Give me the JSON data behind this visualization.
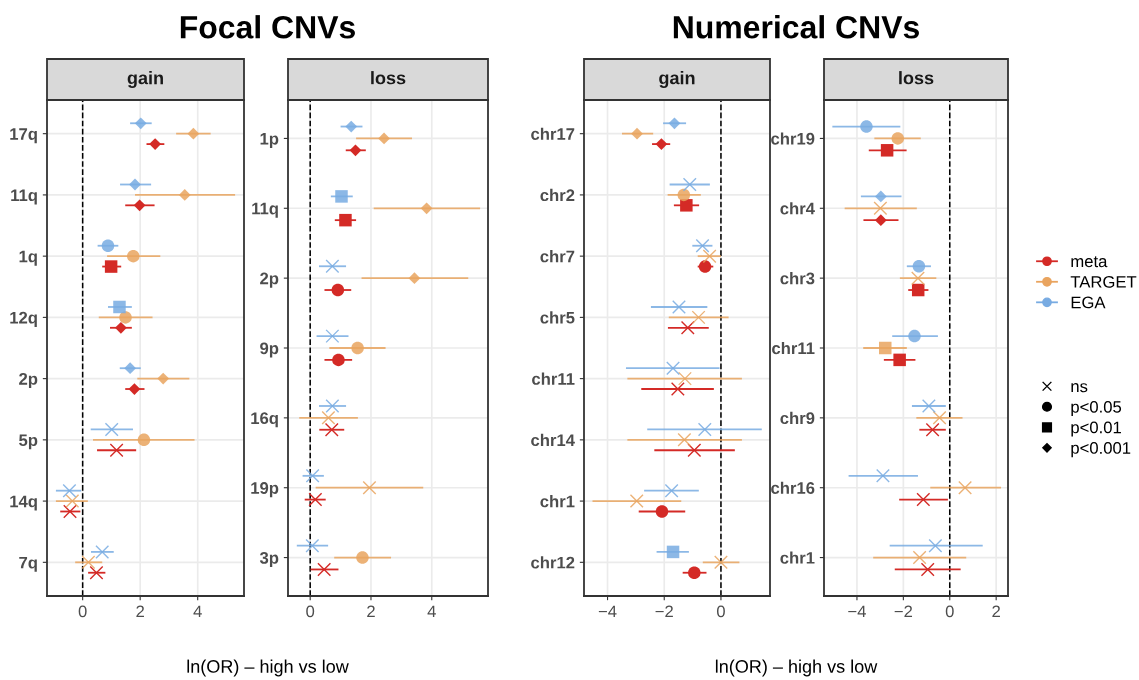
{
  "chart_data": [
    {
      "type": "scatter",
      "orientation": "horizontal",
      "title": "Focal CNVs",
      "subtitle": "gain",
      "xlabel": "ln(OR) – high vs low",
      "categories": [
        "17q",
        "11q",
        "1q",
        "12q",
        "2p",
        "5p",
        "14q",
        "7q"
      ],
      "xlim": [
        -1.24,
        5.61
      ],
      "xticks": [
        0,
        2,
        4
      ],
      "grid": true,
      "legend": "right",
      "annotations": [
        "ns",
        "p<0.05",
        "p<0.01",
        "p<0.001"
      ],
      "marker": [
        "cross",
        "circle",
        "square",
        "diamond"
      ],
      "ref_lines": [
        {
          "axis": "x",
          "value": 0,
          "color": "#000000",
          "line_style": "dashed"
        }
      ],
      "series": [
        {
          "name": "meta",
          "color": "#d42a26",
          "values": [
            2.52,
            1.98,
            0.99,
            1.33,
            1.8,
            1.18,
            -0.44,
            0.48
          ],
          "errors": [
            [
              2.22,
              2.84
            ],
            [
              1.48,
              2.5
            ],
            [
              0.68,
              1.34
            ],
            [
              0.95,
              1.71
            ],
            [
              1.48,
              2.15
            ],
            [
              0.5,
              1.86
            ],
            [
              -0.78,
              -0.08
            ],
            [
              0.19,
              0.79
            ]
          ],
          "marker": [
            "diamond",
            "diamond",
            "square",
            "diamond",
            "diamond",
            "cross",
            "cross",
            "cross"
          ]
        },
        {
          "name": "TARGET",
          "color": "#e9a45f",
          "values": [
            3.85,
            3.55,
            1.76,
            1.49,
            2.8,
            2.13,
            -0.36,
            0.2
          ],
          "errors": [
            [
              3.25,
              4.45
            ],
            [
              1.82,
              5.3
            ],
            [
              0.85,
              2.7
            ],
            [
              0.56,
              2.43
            ],
            [
              1.9,
              3.71
            ],
            [
              0.36,
              3.89
            ],
            [
              -0.93,
              0.18
            ],
            [
              -0.26,
              0.68
            ]
          ],
          "marker": [
            "diamond",
            "diamond",
            "circle",
            "circle",
            "diamond",
            "circle",
            "cross",
            "cross"
          ]
        },
        {
          "name": "EGA",
          "color": "#78abe2",
          "values": [
            2.02,
            1.82,
            0.88,
            1.28,
            1.65,
            1.01,
            -0.46,
            0.68
          ],
          "errors": [
            [
              1.65,
              2.4
            ],
            [
              1.3,
              2.38
            ],
            [
              0.52,
              1.24
            ],
            [
              0.88,
              1.71
            ],
            [
              1.29,
              2.02
            ],
            [
              0.28,
              1.75
            ],
            [
              -0.93,
              -0.05
            ],
            [
              0.29,
              1.08
            ]
          ],
          "marker": [
            "diamond",
            "diamond",
            "circle",
            "square",
            "diamond",
            "cross",
            "cross",
            "cross"
          ]
        }
      ]
    },
    {
      "type": "scatter",
      "orientation": "horizontal",
      "subtitle": "loss",
      "categories": [
        "1p",
        "11q",
        "2p",
        "9p",
        "16q",
        "19p",
        "3p"
      ],
      "xlim": [
        -0.73,
        5.85
      ],
      "xticks": [
        0,
        2,
        4
      ],
      "grid": true,
      "ref_lines": [
        {
          "axis": "x",
          "value": 0,
          "color": "#000000",
          "line_style": "dashed"
        }
      ],
      "series": [
        {
          "color": "#d42a26",
          "values": [
            1.49,
            1.16,
            0.91,
            0.93,
            0.71,
            0.17,
            0.46
          ],
          "errors": [
            [
              1.17,
              1.83
            ],
            [
              0.81,
              1.51
            ],
            [
              0.47,
              1.35
            ],
            [
              0.47,
              1.38
            ],
            [
              0.3,
              1.12
            ],
            [
              -0.18,
              0.51
            ],
            [
              0.01,
              0.93
            ]
          ],
          "marker": [
            "diamond",
            "square",
            "circle",
            "circle",
            "cross",
            "cross",
            "cross"
          ]
        },
        {
          "color": "#e9a45f",
          "values": [
            2.43,
            3.83,
            3.43,
            1.56,
            0.6,
            1.95,
            1.72
          ],
          "errors": [
            [
              1.51,
              3.35
            ],
            [
              2.09,
              5.59
            ],
            [
              1.69,
              5.2
            ],
            [
              0.63,
              2.48
            ],
            [
              -0.36,
              1.57
            ],
            [
              0.18,
              3.72
            ],
            [
              0.79,
              2.66
            ]
          ],
          "marker": [
            "diamond",
            "diamond",
            "diamond",
            "circle",
            "cross",
            "cross",
            "circle"
          ]
        },
        {
          "color": "#78abe2",
          "values": [
            1.35,
            1.03,
            0.73,
            0.73,
            0.73,
            0.08,
            0.07
          ],
          "errors": [
            [
              1.0,
              1.72
            ],
            [
              0.68,
              1.4
            ],
            [
              0.29,
              1.18
            ],
            [
              0.21,
              1.26
            ],
            [
              0.29,
              1.18
            ],
            [
              -0.25,
              0.45
            ],
            [
              -0.44,
              0.59
            ]
          ],
          "marker": [
            "diamond",
            "square",
            "cross",
            "cross",
            "cross",
            "cross",
            "cross"
          ]
        }
      ]
    },
    {
      "type": "scatter",
      "orientation": "horizontal",
      "title": "Numerical CNVs",
      "subtitle": "gain",
      "xlabel": "ln(OR) – high vs low",
      "categories": [
        "chr17",
        "chr2",
        "chr7",
        "chr5",
        "chr11",
        "chr14",
        "chr1",
        "chr12"
      ],
      "xlim": [
        -4.83,
        1.73
      ],
      "xticks": [
        -4,
        -2,
        0
      ],
      "grid": true,
      "ref_lines": [
        {
          "axis": "x",
          "value": 0,
          "color": "#000000",
          "line_style": "dashed"
        }
      ],
      "series": [
        {
          "color": "#d42a26",
          "values": [
            -2.1,
            -1.22,
            -0.56,
            -1.17,
            -1.52,
            -0.94,
            -2.08,
            -0.94
          ],
          "errors": [
            [
              -2.43,
              -1.79
            ],
            [
              -1.66,
              -0.77
            ],
            [
              -0.82,
              -0.27
            ],
            [
              -1.87,
              -0.43
            ],
            [
              -2.81,
              -0.25
            ],
            [
              -2.35,
              0.49
            ],
            [
              -2.9,
              -1.26
            ],
            [
              -1.35,
              -0.51
            ]
          ],
          "marker": [
            "diamond",
            "square",
            "circle",
            "cross",
            "cross",
            "cross",
            "circle",
            "circle"
          ]
        },
        {
          "color": "#e9a45f",
          "values": [
            -2.96,
            -1.31,
            -0.4,
            -0.79,
            -1.27,
            -1.29,
            -2.97,
            0
          ],
          "errors": [
            [
              -3.49,
              -2.39
            ],
            [
              -1.88,
              -0.71
            ],
            [
              -0.82,
              0
            ],
            [
              -1.84,
              0.27
            ],
            [
              -3.3,
              0.74
            ],
            [
              -3.3,
              0.74
            ],
            [
              -4.53,
              -1.4
            ],
            [
              -0.64,
              0.65
            ]
          ],
          "marker": [
            "diamond",
            "circle",
            "cross",
            "cross",
            "cross",
            "cross",
            "cross",
            "cross"
          ]
        },
        {
          "color": "#78abe2",
          "values": [
            -1.64,
            -1.1,
            -0.65,
            -1.48,
            -1.69,
            -0.57,
            -1.74,
            -1.69
          ],
          "errors": [
            [
              -2.04,
              -1.23
            ],
            [
              -1.81,
              -0.39
            ],
            [
              -1.01,
              -0.3
            ],
            [
              -2.47,
              -0.48
            ],
            [
              -3.35,
              -0.05
            ],
            [
              -2.6,
              1.44
            ],
            [
              -2.71,
              -0.78
            ],
            [
              -2.27,
              -1.13
            ]
          ],
          "marker": [
            "diamond",
            "cross",
            "cross",
            "cross",
            "cross",
            "cross",
            "cross",
            "square"
          ]
        }
      ]
    },
    {
      "type": "scatter",
      "orientation": "horizontal",
      "subtitle": "loss",
      "categories": [
        "chr19",
        "chr4",
        "chr3",
        "chr11",
        "chr9",
        "chr16",
        "chr1"
      ],
      "xlim": [
        -5.42,
        2.51
      ],
      "xticks": [
        -4,
        -2,
        0,
        2
      ],
      "grid": true,
      "ref_lines": [
        {
          "axis": "x",
          "value": 0,
          "color": "#000000",
          "line_style": "dashed"
        }
      ],
      "series": [
        {
          "color": "#d42a26",
          "values": [
            -2.7,
            -2.97,
            -1.36,
            -2.16,
            -0.74,
            -1.14,
            -0.95
          ],
          "errors": [
            [
              -3.49,
              -1.86
            ],
            [
              -3.72,
              -2.21
            ],
            [
              -1.79,
              -0.92
            ],
            [
              -2.84,
              -1.48
            ],
            [
              -1.31,
              -0.17
            ],
            [
              -2.18,
              -0.08
            ],
            [
              -2.37,
              0.47
            ]
          ],
          "marker": [
            "square",
            "diamond",
            "square",
            "square",
            "cross",
            "cross",
            "cross"
          ]
        },
        {
          "color": "#e9a45f",
          "values": [
            -2.24,
            -2.99,
            -1.37,
            -2.78,
            -0.44,
            0.66,
            -1.3
          ],
          "errors": [
            [
              -3.25,
              -1.25
            ],
            [
              -4.53,
              -1.42
            ],
            [
              -2.15,
              -0.58
            ],
            [
              -3.73,
              -1.85
            ],
            [
              -1.44,
              0.55
            ],
            [
              -0.84,
              2.21
            ],
            [
              -3.3,
              0.71
            ]
          ],
          "marker": [
            "circle",
            "cross",
            "cross",
            "square",
            "cross",
            "cross",
            "cross"
          ]
        },
        {
          "color": "#78abe2",
          "values": [
            -3.59,
            -2.97,
            -1.33,
            -1.52,
            -0.9,
            -2.88,
            -0.62
          ],
          "errors": [
            [
              -5.06,
              -2.13
            ],
            [
              -3.83,
              -2.08
            ],
            [
              -1.85,
              -0.81
            ],
            [
              -2.48,
              -0.51
            ],
            [
              -1.63,
              -0.17
            ],
            [
              -4.36,
              -1.37
            ],
            [
              -2.59,
              1.42
            ]
          ],
          "marker": [
            "circle",
            "diamond",
            "circle",
            "circle",
            "cross",
            "cross",
            "cross"
          ]
        }
      ]
    }
  ]
}
